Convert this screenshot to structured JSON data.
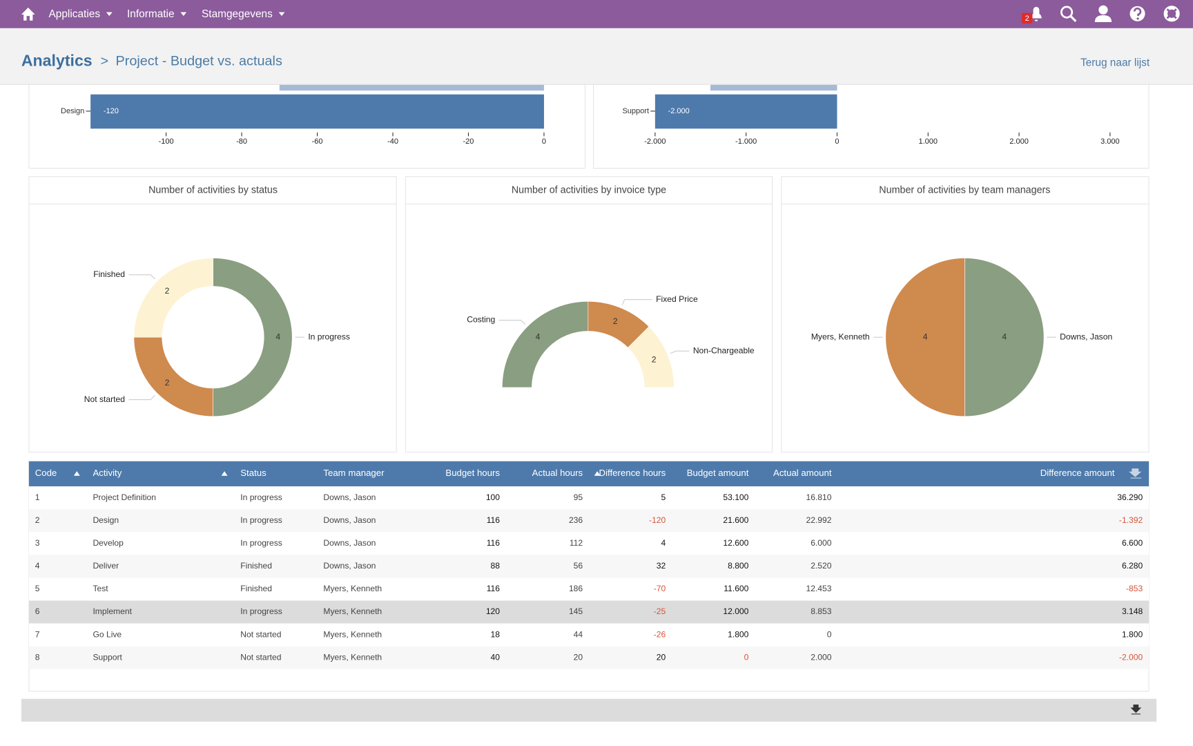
{
  "nav": {
    "menu": [
      "Applicaties",
      "Informatie",
      "Stamgegevens"
    ],
    "badge": "2"
  },
  "header": {
    "title": "Analytics",
    "separator": ">",
    "subtitle": "Project - Budget vs. actuals",
    "back_link": "Terug naar lijst"
  },
  "chart_data": [
    {
      "type": "hbar",
      "categories": [
        null,
        "Design"
      ],
      "values": [
        -70,
        -120
      ],
      "value_labels": [
        null,
        "-120"
      ],
      "colors": [
        "#a6bad6",
        "#4e7aab"
      ],
      "xlim": [
        -120,
        0
      ],
      "xticks": [
        -100,
        -80,
        -60,
        -40,
        -20,
        0
      ]
    },
    {
      "type": "hbar",
      "categories": [
        null,
        "Support"
      ],
      "values": [
        -1392,
        -2000
      ],
      "value_labels": [
        null,
        "-2.000"
      ],
      "colors": [
        "#a6bad6",
        "#4e7aab"
      ],
      "xlim": [
        -2000,
        3000
      ],
      "xticks": [
        {
          "value": -2000,
          "label": "-2.000"
        },
        {
          "value": -1000,
          "label": "-1.000"
        },
        0,
        {
          "value": 1000,
          "label": "1.000"
        },
        {
          "value": 2000,
          "label": "2.000"
        },
        {
          "value": 3000,
          "label": "3.000"
        }
      ]
    },
    {
      "type": "donut",
      "title": "Number of activities by status",
      "categories": [
        "In progress",
        "Not started",
        "Finished"
      ],
      "values": [
        4,
        2,
        2
      ],
      "colors": [
        "#8a9e81",
        "#cf8a4e",
        "#fdf3d3"
      ]
    },
    {
      "type": "halfdonut",
      "title": "Number of activities by invoice type",
      "categories": [
        "Costing",
        "Fixed Price",
        "Non-Chargeable"
      ],
      "values": [
        4,
        2,
        2
      ],
      "colors": [
        "#8a9e81",
        "#cf8a4e",
        "#fdf3d3"
      ]
    },
    {
      "type": "pie",
      "title": "Number of activities by team managers",
      "categories": [
        "Downs, Jason",
        "Myers, Kenneth"
      ],
      "values": [
        4,
        4
      ],
      "colors": [
        "#8a9e81",
        "#cf8a4e"
      ]
    }
  ],
  "table": {
    "columns": [
      "Code",
      "Activity",
      "Status",
      "Team manager",
      "Budget hours",
      "Actual hours",
      "Difference hours",
      "Budget amount",
      "Actual amount",
      "Difference amount"
    ],
    "rows": [
      [
        "1",
        "Project Definition",
        "In progress",
        "Downs, Jason",
        "100",
        "95",
        "5",
        "53.100",
        "16.810",
        "36.290"
      ],
      [
        "2",
        "Design",
        "In progress",
        "Downs, Jason",
        "116",
        "236",
        "-120",
        "21.600",
        "22.992",
        "-1.392"
      ],
      [
        "3",
        "Develop",
        "In progress",
        "Downs, Jason",
        "116",
        "112",
        "4",
        "12.600",
        "6.000",
        "6.600"
      ],
      [
        "4",
        "Deliver",
        "Finished",
        "Downs, Jason",
        "88",
        "56",
        "32",
        "8.800",
        "2.520",
        "6.280"
      ],
      [
        "5",
        "Test",
        "Finished",
        "Myers, Kenneth",
        "116",
        "186",
        "-70",
        "11.600",
        "12.453",
        "-853"
      ],
      [
        "6",
        "Implement",
        "In progress",
        "Myers, Kenneth",
        "120",
        "145",
        "-25",
        "12.000",
        "8.853",
        "3.148"
      ],
      [
        "7",
        "Go Live",
        "Not started",
        "Myers, Kenneth",
        "18",
        "44",
        "-26",
        "1.800",
        "0",
        "1.800"
      ],
      [
        "8",
        "Support",
        "Not started",
        "Myers, Kenneth",
        "40",
        "20",
        "20",
        "0",
        "2.000",
        "-2.000"
      ]
    ],
    "negative_color": "#d4553a",
    "red_cells": [
      [
        1,
        6
      ],
      [
        1,
        9
      ],
      [
        4,
        6
      ],
      [
        4,
        9
      ],
      [
        5,
        6
      ],
      [
        6,
        6
      ],
      [
        7,
        7
      ],
      [
        7,
        9
      ]
    ],
    "hover_row": 5
  }
}
